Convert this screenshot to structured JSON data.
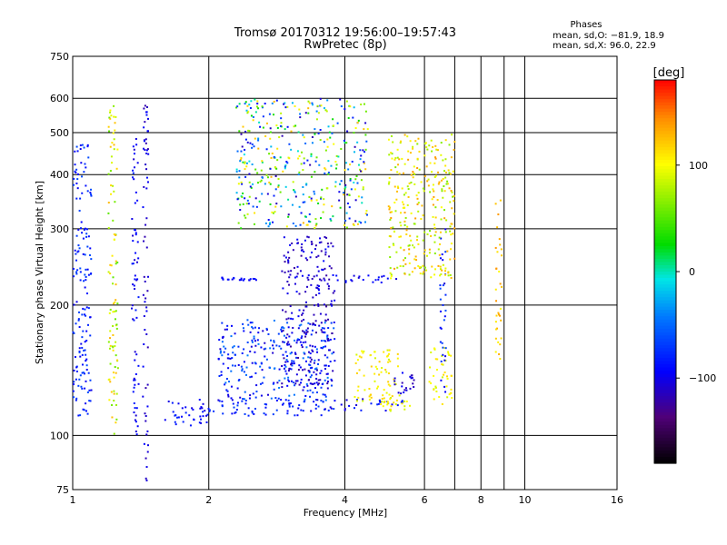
{
  "chart_data": {
    "type": "scatter",
    "title": "Tromsø 20170312 19:56:00–19:57:43",
    "subtitle": "RwPretec (8p)",
    "xlabel": "Frequency [MHz]",
    "ylabel": "Stationary phase Virtual Height [km]",
    "x_scale": "log",
    "y_scale": "log",
    "xlim": [
      1,
      16
    ],
    "ylim": [
      75,
      750
    ],
    "x_ticks": [
      1,
      2,
      4,
      6,
      8,
      10,
      16
    ],
    "x_grid_extra": [
      7,
      9
    ],
    "y_ticks": [
      75,
      100,
      200,
      300,
      400,
      500,
      600,
      750
    ],
    "grid": true,
    "phases_box": {
      "title": "Phases",
      "line1": "mean, sd,O: −81.9, 18.9",
      "line2": "mean, sd,X:  96.0, 22.9"
    },
    "colorbar": {
      "label": "[deg]",
      "range": [
        -180,
        180
      ],
      "ticks": [
        100,
        0,
        -100
      ],
      "tick_labels": [
        "100",
        "0",
        "−100"
      ]
    },
    "series": [
      {
        "clusters": [
          {
            "f": [
              1.6,
              2.0
            ],
            "h": [
              104,
              121
            ],
            "phase": [
              -105,
              -75
            ]
          },
          {
            "f": [
              2.0,
              3.6
            ],
            "h": [
              111,
              122
            ],
            "phase": [
              -100,
              -65
            ]
          },
          {
            "f": [
              3.6,
              5.4
            ],
            "h": [
              114,
              122
            ],
            "phase": [
              -110,
              -70
            ]
          },
          {
            "f": [
              2.1,
              3.8
            ],
            "h": [
              120,
              185
            ],
            "phase": [
              -110,
              -40
            ]
          },
          {
            "f": [
              2.9,
              3.8
            ],
            "h": [
              130,
              290
            ],
            "phase": [
              -125,
              -90
            ]
          },
          {
            "f": [
              2.1,
              2.6
            ],
            "h": [
              228,
              232
            ],
            "phase": [
              -100,
              -85
            ]
          },
          {
            "f": [
              3.8,
              5.2
            ],
            "h": [
              225,
              234
            ],
            "phase": [
              -105,
              -85
            ]
          },
          {
            "f": [
              4.2,
              5.3
            ],
            "h": [
              120,
              158
            ],
            "phase": [
              85,
              120
            ]
          },
          {
            "f": [
              4.8,
              5.6
            ],
            "h": [
              113,
              120
            ],
            "phase": [
              85,
              115
            ]
          },
          {
            "f": [
              6.1,
              6.9
            ],
            "h": [
              118,
              160
            ],
            "phase": [
              85,
              115
            ]
          },
          {
            "f": [
              5.1,
              5.7
            ],
            "h": [
              118,
              140
            ],
            "phase": [
              -120,
              -90
            ]
          },
          {
            "f": [
              1.43,
              1.47
            ],
            "h": [
              76,
              610
            ],
            "phase": [
              -120,
              -90
            ]
          },
          {
            "f": [
              1.35,
              1.4
            ],
            "h": [
              100,
              490
            ],
            "phase": [
              -110,
              -80
            ]
          },
          {
            "f": [
              1.2,
              1.26
            ],
            "h": [
              100,
              600
            ],
            "phase": [
              50,
              130
            ]
          },
          {
            "f": [
              6.5,
              6.7
            ],
            "h": [
              120,
              300
            ],
            "phase": [
              -110,
              -60
            ]
          },
          {
            "f": [
              8.6,
              8.9
            ],
            "h": [
              150,
              350
            ],
            "phase": [
              100,
              140
            ]
          },
          {
            "f": [
              1.0,
              1.1
            ],
            "h": [
              110,
              470
            ],
            "phase": [
              -100,
              -60
            ]
          },
          {
            "f": [
              5.0,
              7.0
            ],
            "h": [
              230,
              500
            ],
            "phase": [
              60,
              140
            ]
          },
          {
            "f": [
              2.3,
              4.5
            ],
            "h": [
              300,
              600
            ],
            "phase": [
              -120,
              130
            ]
          }
        ]
      }
    ]
  }
}
